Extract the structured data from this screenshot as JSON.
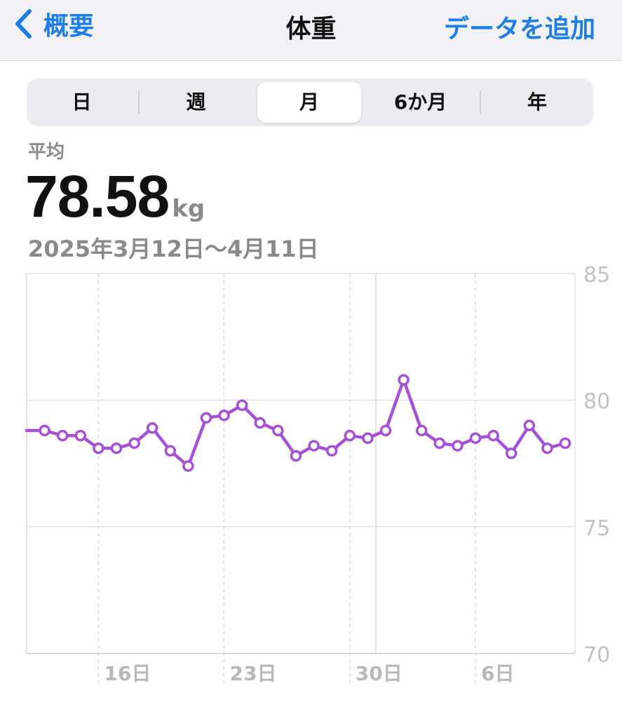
{
  "nav": {
    "back_label": "概要",
    "title": "体重",
    "add_label": "データを追加"
  },
  "segments": [
    {
      "label": "日",
      "active": false
    },
    {
      "label": "週",
      "active": false
    },
    {
      "label": "月",
      "active": true
    },
    {
      "label": "6か月",
      "active": false
    },
    {
      "label": "年",
      "active": false
    }
  ],
  "summary": {
    "avg_label": "平均",
    "value": "78.58",
    "unit": "kg",
    "date_range": "2025年3月12日〜4月11日"
  },
  "colors": {
    "accent": "#1c7ee6",
    "series": "#a550d6"
  },
  "chart_data": {
    "type": "line",
    "title": "",
    "xlabel": "",
    "ylabel": "",
    "x_range": [
      "2025-03-12",
      "2025-04-11"
    ],
    "ylim": [
      70,
      85
    ],
    "yticks": [
      70,
      75,
      80,
      85
    ],
    "xticks": [
      {
        "date": "2025-03-16",
        "label": "16日"
      },
      {
        "date": "2025-03-23",
        "label": "23日"
      },
      {
        "date": "2025-03-30",
        "label": "30日"
      },
      {
        "date": "2025-04-06",
        "label": "6日"
      }
    ],
    "grid": true,
    "series": [
      {
        "points": [
          {
            "x": "2025-03-12",
            "y": 78.8,
            "marker": false
          },
          {
            "x": "2025-03-13",
            "y": 78.8
          },
          {
            "x": "2025-03-14",
            "y": 78.6
          },
          {
            "x": "2025-03-15",
            "y": 78.6
          },
          {
            "x": "2025-03-16",
            "y": 78.1
          },
          {
            "x": "2025-03-17",
            "y": 78.1
          },
          {
            "x": "2025-03-18",
            "y": 78.3
          },
          {
            "x": "2025-03-19",
            "y": 78.9
          },
          {
            "x": "2025-03-20",
            "y": 78.0
          },
          {
            "x": "2025-03-21",
            "y": 77.4
          },
          {
            "x": "2025-03-22",
            "y": 79.3
          },
          {
            "x": "2025-03-23",
            "y": 79.4
          },
          {
            "x": "2025-03-24",
            "y": 79.8
          },
          {
            "x": "2025-03-25",
            "y": 79.1
          },
          {
            "x": "2025-03-26",
            "y": 78.8
          },
          {
            "x": "2025-03-27",
            "y": 77.8
          },
          {
            "x": "2025-03-28",
            "y": 78.2
          },
          {
            "x": "2025-03-29",
            "y": 78.0
          },
          {
            "x": "2025-03-30",
            "y": 78.6
          },
          {
            "x": "2025-03-31",
            "y": 78.5
          },
          {
            "x": "2025-04-01",
            "y": 78.8
          },
          {
            "x": "2025-04-02",
            "y": 80.8
          },
          {
            "x": "2025-04-03",
            "y": 78.8
          },
          {
            "x": "2025-04-04",
            "y": 78.3
          },
          {
            "x": "2025-04-05",
            "y": 78.2
          },
          {
            "x": "2025-04-06",
            "y": 78.5
          },
          {
            "x": "2025-04-07",
            "y": 78.6
          },
          {
            "x": "2025-04-08",
            "y": 77.9
          },
          {
            "x": "2025-04-09",
            "y": 79.0
          },
          {
            "x": "2025-04-10",
            "y": 78.1
          },
          {
            "x": "2025-04-11",
            "y": 78.3
          }
        ]
      }
    ]
  }
}
